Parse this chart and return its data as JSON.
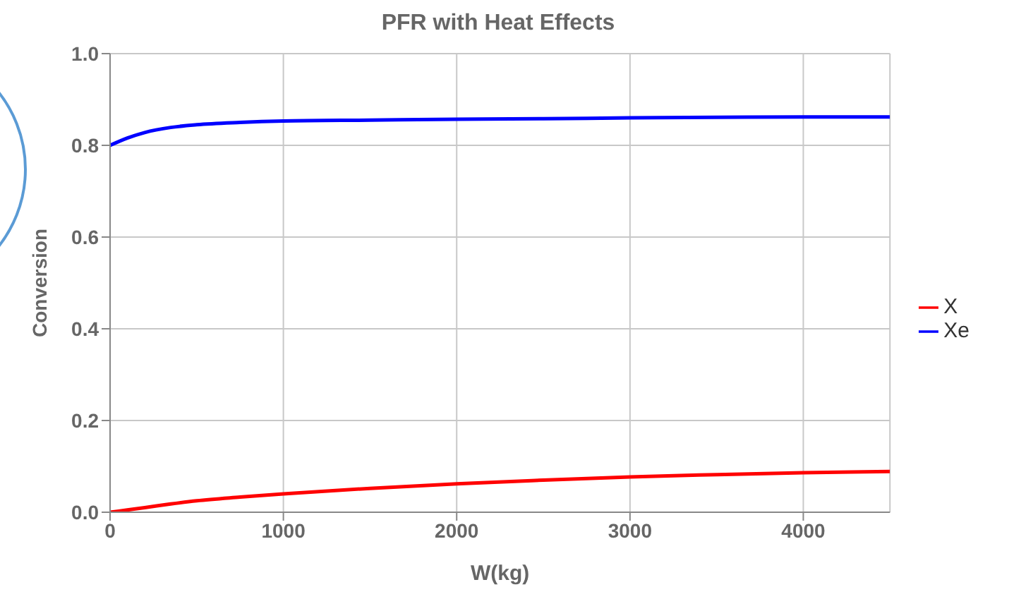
{
  "chart_data": {
    "type": "line",
    "title": "PFR with Heat Effects",
    "xlabel": "W(kg)",
    "ylabel": "Conversion",
    "xlim": [
      0,
      4500
    ],
    "xticks": [
      0,
      1000,
      2000,
      3000,
      4000
    ],
    "ylim": [
      0,
      1
    ],
    "yticks": [
      {
        "value": 0,
        "label": "0.0"
      },
      0.2,
      0.4,
      0.6,
      0.8,
      {
        "value": 1,
        "label": "1.0"
      }
    ],
    "grid": true,
    "legend": "right",
    "marker": "none",
    "line_style": "solid",
    "series": [
      {
        "name": "X",
        "color": "#ff0000",
        "x": [
          0,
          100,
          200,
          350,
          500,
          750,
          1000,
          1500,
          2000,
          2500,
          3000,
          3500,
          4000,
          4500
        ],
        "values": [
          0,
          0.005,
          0.01,
          0.018,
          0.025,
          0.033,
          0.04,
          0.052,
          0.062,
          0.07,
          0.077,
          0.082,
          0.086,
          0.089
        ]
      },
      {
        "name": "Xe",
        "color": "#0000ff",
        "x": [
          0,
          100,
          200,
          350,
          500,
          750,
          1000,
          1500,
          2000,
          2500,
          3000,
          3500,
          4000,
          4500
        ],
        "values": [
          0.8,
          0.816,
          0.828,
          0.839,
          0.845,
          0.85,
          0.853,
          0.855,
          0.857,
          0.858,
          0.86,
          0.861,
          0.862,
          0.862
        ]
      }
    ]
  }
}
